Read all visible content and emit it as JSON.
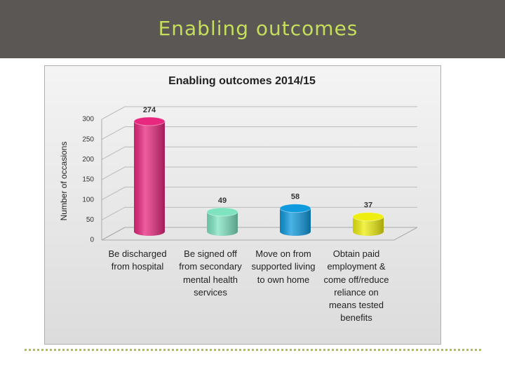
{
  "slide_title": "Enabling outcomes",
  "chart_data": {
    "type": "bar3d",
    "title": "Enabling outcomes 2014/15",
    "y_label": "Number of occasions",
    "categories": [
      "Be discharged from hospital",
      "Be signed off from secondary mental health services",
      "Move on from supported living to own home",
      "Obtain paid employment & come off/reduce reliance on means tested benefits"
    ],
    "values": [
      274,
      49,
      58,
      37
    ],
    "colors": [
      "#e8287e",
      "#7fe3c0",
      "#0f9ade",
      "#eeee10"
    ],
    "ylim": [
      0,
      300
    ],
    "yticks": [
      0,
      50,
      100,
      150,
      200,
      250,
      300
    ],
    "grid": true
  }
}
